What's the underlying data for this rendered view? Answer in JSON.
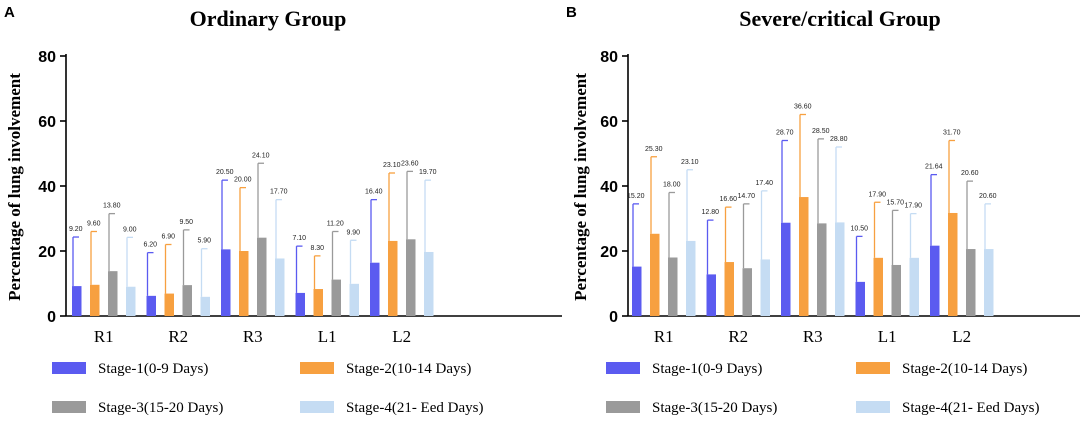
{
  "chart_data": [
    {
      "type": "bar",
      "panel": "A",
      "title": "Ordinary  Group",
      "ylabel": "Percentage of lung involvement",
      "xlabel": "",
      "ylim": [
        0,
        80
      ],
      "yticks": [
        "0",
        "20",
        "40",
        "60",
        "80"
      ],
      "categories": [
        "R1",
        "R2",
        "R3",
        "L1",
        "L2"
      ],
      "series": [
        {
          "name": "Stage-1(0-9 Days)",
          "color": "#5b5bf0",
          "values": [
            9.2,
            6.2,
            20.5,
            7.1,
            16.4
          ],
          "labels": [
            "9.20",
            "6.20",
            "20.50",
            "7.10",
            "16.40"
          ],
          "err_upper": [
            24.3,
            19.5,
            41.8,
            21.5,
            35.8
          ]
        },
        {
          "name": "Stage-2(10-14 Days)",
          "color": "#f7a040",
          "values": [
            9.6,
            6.9,
            20.0,
            8.3,
            23.1
          ],
          "labels": [
            "9.60",
            "6.90",
            "20.00",
            "8.30",
            "23.10"
          ],
          "err_upper": [
            26.0,
            22.0,
            39.5,
            18.5,
            44.0
          ]
        },
        {
          "name": "Stage-3(15-20 Days)",
          "color": "#9a9a9a",
          "values": [
            13.8,
            9.5,
            24.1,
            11.2,
            23.6
          ],
          "labels": [
            "13.80",
            "9.50",
            "24.10",
            "11.20",
            "23.60"
          ],
          "err_upper": [
            31.5,
            26.5,
            47.0,
            26.0,
            44.5
          ]
        },
        {
          "name": "Stage-4(21- Eed Days)",
          "color": "#c5dcf3",
          "values": [
            9.0,
            5.9,
            17.7,
            9.9,
            19.7
          ],
          "labels": [
            "9.00",
            "5.90",
            "17.70",
            "9.90",
            "19.70"
          ],
          "err_upper": [
            24.2,
            20.7,
            35.8,
            23.3,
            41.8
          ]
        }
      ]
    },
    {
      "type": "bar",
      "panel": "B",
      "title": "Severe/critical  Group",
      "ylabel": "Percentage of lung involvement",
      "xlabel": "",
      "ylim": [
        0,
        80
      ],
      "yticks": [
        "0",
        "20",
        "40",
        "60",
        "80"
      ],
      "categories": [
        "R1",
        "R2",
        "R3",
        "L1",
        "L2"
      ],
      "series": [
        {
          "name": "Stage-1(0-9 Days)",
          "color": "#5b5bf0",
          "values": [
            15.2,
            12.8,
            28.7,
            10.5,
            21.64
          ],
          "labels": [
            "15.20",
            "12.80",
            "28.70",
            "10.50",
            "21.64"
          ],
          "err_upper": [
            34.5,
            29.5,
            54.0,
            24.5,
            43.5
          ]
        },
        {
          "name": "Stage-2(10-14 Days)",
          "color": "#f7a040",
          "values": [
            25.3,
            16.6,
            36.6,
            17.9,
            31.7
          ],
          "labels": [
            "25.30",
            "16.60",
            "36.60",
            "17.90",
            "31.70"
          ],
          "err_upper": [
            49.0,
            33.5,
            62.0,
            35.0,
            54.0
          ]
        },
        {
          "name": "Stage-3(15-20 Days)",
          "color": "#9a9a9a",
          "values": [
            18.0,
            14.7,
            28.5,
            15.7,
            20.6
          ],
          "labels": [
            "18.00",
            "14.70",
            "28.50",
            "15.70",
            "20.60"
          ],
          "err_upper": [
            38.0,
            34.5,
            54.5,
            32.5,
            41.5
          ]
        },
        {
          "name": "Stage-4(21- Eed Days)",
          "color": "#c5dcf3",
          "values": [
            23.1,
            17.4,
            28.8,
            17.9,
            20.6
          ],
          "labels": [
            "23.10",
            "17.40",
            "28.80",
            "17.90",
            "20.60"
          ],
          "err_upper": [
            45.0,
            38.5,
            52.0,
            31.5,
            34.5
          ]
        }
      ]
    }
  ]
}
